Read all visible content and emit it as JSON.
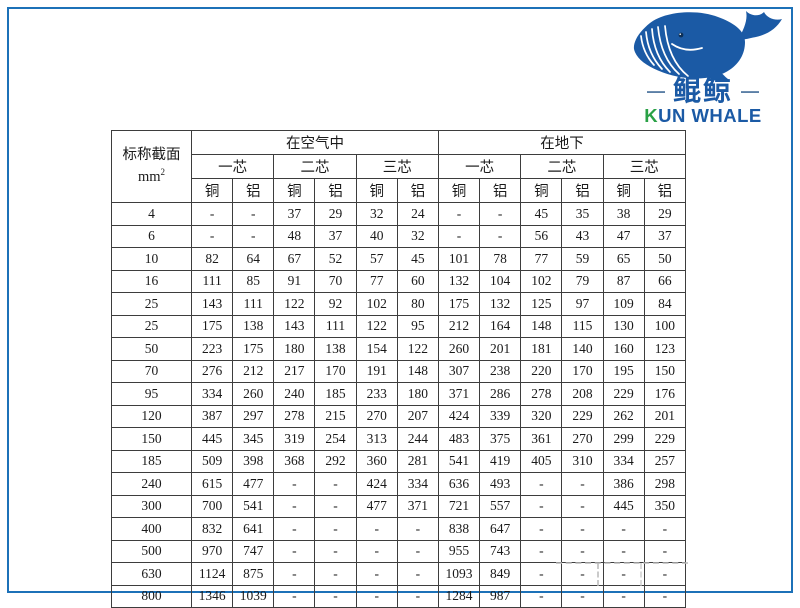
{
  "logo": {
    "cn_name": "鲲鲸",
    "en_name_first": "K",
    "en_name_rest": "UN WHALE",
    "dash": "—",
    "blue": "#1b5aa5",
    "green": "#2aa146"
  },
  "frame_color": "#1c71b8",
  "table": {
    "corner": {
      "line1": "标称截面",
      "line2_base": "mm",
      "line2_sup": "2"
    },
    "groups": [
      {
        "label": "在空气中"
      },
      {
        "label": "在地下"
      }
    ],
    "cores": [
      "一芯",
      "二芯",
      "三芯",
      "一芯",
      "二芯",
      "三芯"
    ],
    "materials": [
      "铜",
      "铝",
      "铜",
      "铝",
      "铜",
      "铝",
      "铜",
      "铝",
      "铜",
      "铝",
      "铜",
      "铝"
    ],
    "rows": [
      {
        "size": "4",
        "values": [
          "-",
          "-",
          "37",
          "29",
          "32",
          "24",
          "-",
          "-",
          "45",
          "35",
          "38",
          "29"
        ]
      },
      {
        "size": "6",
        "values": [
          "-",
          "-",
          "48",
          "37",
          "40",
          "32",
          "-",
          "-",
          "56",
          "43",
          "47",
          "37"
        ]
      },
      {
        "size": "10",
        "values": [
          "82",
          "64",
          "67",
          "52",
          "57",
          "45",
          "101",
          "78",
          "77",
          "59",
          "65",
          "50"
        ]
      },
      {
        "size": "16",
        "values": [
          "111",
          "85",
          "91",
          "70",
          "77",
          "60",
          "132",
          "104",
          "102",
          "79",
          "87",
          "66"
        ]
      },
      {
        "size": "25",
        "values": [
          "143",
          "111",
          "122",
          "92",
          "102",
          "80",
          "175",
          "132",
          "125",
          "97",
          "109",
          "84"
        ]
      },
      {
        "size": "25",
        "values": [
          "175",
          "138",
          "143",
          "111",
          "122",
          "95",
          "212",
          "164",
          "148",
          "115",
          "130",
          "100"
        ]
      },
      {
        "size": "50",
        "values": [
          "223",
          "175",
          "180",
          "138",
          "154",
          "122",
          "260",
          "201",
          "181",
          "140",
          "160",
          "123"
        ]
      },
      {
        "size": "70",
        "values": [
          "276",
          "212",
          "217",
          "170",
          "191",
          "148",
          "307",
          "238",
          "220",
          "170",
          "195",
          "150"
        ]
      },
      {
        "size": "95",
        "values": [
          "334",
          "260",
          "240",
          "185",
          "233",
          "180",
          "371",
          "286",
          "278",
          "208",
          "229",
          "176"
        ]
      },
      {
        "size": "120",
        "values": [
          "387",
          "297",
          "278",
          "215",
          "270",
          "207",
          "424",
          "339",
          "320",
          "229",
          "262",
          "201"
        ]
      },
      {
        "size": "150",
        "values": [
          "445",
          "345",
          "319",
          "254",
          "313",
          "244",
          "483",
          "375",
          "361",
          "270",
          "299",
          "229"
        ]
      },
      {
        "size": "185",
        "values": [
          "509",
          "398",
          "368",
          "292",
          "360",
          "281",
          "541",
          "419",
          "405",
          "310",
          "334",
          "257"
        ]
      },
      {
        "size": "240",
        "values": [
          "615",
          "477",
          "-",
          "-",
          "424",
          "334",
          "636",
          "493",
          "-",
          "-",
          "386",
          "298"
        ]
      },
      {
        "size": "300",
        "values": [
          "700",
          "541",
          "-",
          "-",
          "477",
          "371",
          "721",
          "557",
          "-",
          "-",
          "445",
          "350"
        ]
      },
      {
        "size": "400",
        "values": [
          "832",
          "641",
          "-",
          "-",
          "-",
          "-",
          "838",
          "647",
          "-",
          "-",
          "-",
          "-"
        ]
      },
      {
        "size": "500",
        "values": [
          "970",
          "747",
          "-",
          "-",
          "-",
          "-",
          "955",
          "743",
          "-",
          "-",
          "-",
          "-"
        ]
      },
      {
        "size": "630",
        "values": [
          "1124",
          "875",
          "-",
          "-",
          "-",
          "-",
          "1093",
          "849",
          "-",
          "-",
          "-",
          "-"
        ]
      },
      {
        "size": "800",
        "values": [
          "1346",
          "1039",
          "-",
          "-",
          "-",
          "-",
          "1284",
          "987",
          "-",
          "-",
          "-",
          "-"
        ]
      }
    ]
  }
}
